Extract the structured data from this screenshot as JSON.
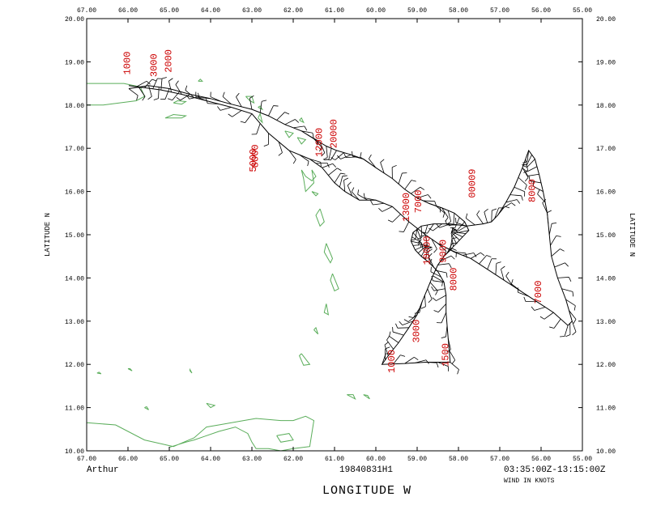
{
  "map": {
    "lon_ticks": [
      "67.00",
      "66.00",
      "65.00",
      "64.00",
      "63.00",
      "62.00",
      "61.00",
      "60.00",
      "59.00",
      "58.00",
      "57.00",
      "56.00",
      "55.00"
    ],
    "lat_ticks": [
      "10.00",
      "11.00",
      "12.00",
      "13.00",
      "14.00",
      "15.00",
      "16.00",
      "17.00",
      "18.00",
      "19.00",
      "20.00"
    ],
    "lon_range_west": [
      67,
      55
    ],
    "lat_range": [
      10,
      20
    ],
    "lat_title": "LATITUDE  N",
    "lon_title": "LONGITUDE  W",
    "storm_name": "Arthur",
    "flight_id": "19840831H1",
    "time_range": "03:35:00Z-13:15:00Z",
    "wind_units": "WIND IN KNOTS",
    "colors": {
      "coastline": "#5aad5a",
      "track": "#000000",
      "altitude_labels": "#cc0000",
      "frame": "#000000"
    },
    "altitude_labels": [
      {
        "text": "1000",
        "lon": 65.95,
        "lat": 18.7
      },
      {
        "text": "3000",
        "lon": 65.3,
        "lat": 18.65
      },
      {
        "text": "2000",
        "lon": 64.95,
        "lat": 18.75
      },
      {
        "text": "5000",
        "lon": 62.9,
        "lat": 16.45
      },
      {
        "text": "8000",
        "lon": 62.85,
        "lat": 16.55
      },
      {
        "text": "12000",
        "lon": 61.3,
        "lat": 16.8
      },
      {
        "text": "20000",
        "lon": 60.95,
        "lat": 17.0
      },
      {
        "text": "13000",
        "lon": 59.2,
        "lat": 15.3
      },
      {
        "text": "7000",
        "lon": 58.9,
        "lat": 15.5
      },
      {
        "text": "10000",
        "lon": 58.7,
        "lat": 14.3
      },
      {
        "text": "9000",
        "lon": 58.3,
        "lat": 14.35
      },
      {
        "text": "8000",
        "lon": 58.05,
        "lat": 13.7
      },
      {
        "text": "00009",
        "lon": 57.6,
        "lat": 15.85
      },
      {
        "text": "8000",
        "lon": 56.15,
        "lat": 15.75
      },
      {
        "text": "7000",
        "lon": 56.0,
        "lat": 13.4
      },
      {
        "text": "3000",
        "lon": 58.95,
        "lat": 12.5
      },
      {
        "text": "1000",
        "lon": 59.55,
        "lat": 11.8
      },
      {
        "text": "1500",
        "lon": 58.25,
        "lat": 11.95
      }
    ],
    "track": [
      [
        65.98,
        18.38
      ],
      [
        65.5,
        18.45
      ],
      [
        65.0,
        18.38
      ],
      [
        64.5,
        18.25
      ],
      [
        64.0,
        18.15
      ],
      [
        63.5,
        18.02
      ],
      [
        63.0,
        17.9
      ],
      [
        62.6,
        17.75
      ],
      [
        62.2,
        17.55
      ],
      [
        61.8,
        17.4
      ],
      [
        61.5,
        17.22
      ],
      [
        61.2,
        17.05
      ],
      [
        60.95,
        16.95
      ],
      [
        60.6,
        16.85
      ],
      [
        60.3,
        16.75
      ],
      [
        60.0,
        16.55
      ],
      [
        59.6,
        16.3
      ],
      [
        59.3,
        16.05
      ],
      [
        59.0,
        15.85
      ],
      [
        58.7,
        15.72
      ],
      [
        58.4,
        15.62
      ],
      [
        58.1,
        15.5
      ],
      [
        57.85,
        15.3
      ],
      [
        57.75,
        15.1
      ],
      [
        57.9,
        14.95
      ],
      [
        58.05,
        14.8
      ],
      [
        58.2,
        14.65
      ],
      [
        58.35,
        14.5
      ],
      [
        58.5,
        14.3
      ],
      [
        58.62,
        14.05
      ],
      [
        58.75,
        13.75
      ],
      [
        58.88,
        13.45
      ],
      [
        59.0,
        13.15
      ],
      [
        59.2,
        12.85
      ],
      [
        59.45,
        12.5
      ],
      [
        59.7,
        12.2
      ],
      [
        59.85,
        12.0
      ],
      [
        59.3,
        12.02
      ],
      [
        58.8,
        12.05
      ],
      [
        58.2,
        12.05
      ],
      [
        58.25,
        12.6
      ],
      [
        58.3,
        13.2
      ],
      [
        58.3,
        13.6
      ],
      [
        58.35,
        13.9
      ],
      [
        58.5,
        14.15
      ],
      [
        58.7,
        14.35
      ],
      [
        58.9,
        14.5
      ],
      [
        59.05,
        14.65
      ],
      [
        59.15,
        14.85
      ],
      [
        59.1,
        15.05
      ],
      [
        58.9,
        15.2
      ],
      [
        58.6,
        15.25
      ],
      [
        58.2,
        15.25
      ],
      [
        57.8,
        15.2
      ],
      [
        57.4,
        15.25
      ],
      [
        57.2,
        15.3
      ],
      [
        57.05,
        15.45
      ],
      [
        56.85,
        15.75
      ],
      [
        56.65,
        16.1
      ],
      [
        56.45,
        16.55
      ],
      [
        56.3,
        16.95
      ],
      [
        56.15,
        16.75
      ],
      [
        56.05,
        16.4
      ],
      [
        55.95,
        16.0
      ],
      [
        55.85,
        15.5
      ],
      [
        55.8,
        15.0
      ],
      [
        55.75,
        14.5
      ],
      [
        55.6,
        14.0
      ],
      [
        55.4,
        13.5
      ],
      [
        55.25,
        13.0
      ],
      [
        55.35,
        12.9
      ],
      [
        55.7,
        13.2
      ],
      [
        56.1,
        13.45
      ],
      [
        56.5,
        13.7
      ],
      [
        56.9,
        13.95
      ],
      [
        57.3,
        14.2
      ],
      [
        57.7,
        14.45
      ],
      [
        58.1,
        14.6
      ],
      [
        58.5,
        14.8
      ],
      [
        58.8,
        15.0
      ],
      [
        59.2,
        15.3
      ],
      [
        59.6,
        15.65
      ],
      [
        60.0,
        15.8
      ],
      [
        60.4,
        15.8
      ],
      [
        60.75,
        16.0
      ],
      [
        61.0,
        16.2
      ],
      [
        61.3,
        16.55
      ],
      [
        61.6,
        16.75
      ],
      [
        62.1,
        16.95
      ],
      [
        62.6,
        17.35
      ],
      [
        63.0,
        17.8
      ],
      [
        63.5,
        17.95
      ],
      [
        64.1,
        18.1
      ],
      [
        64.7,
        18.25
      ],
      [
        65.2,
        18.35
      ],
      [
        65.6,
        18.4
      ],
      [
        65.98,
        18.45
      ]
    ],
    "coastlines": [
      [
        [
          67.0,
          18.0
        ],
        [
          66.6,
          18.0
        ],
        [
          66.2,
          18.05
        ],
        [
          65.8,
          18.1
        ],
        [
          65.6,
          18.2
        ],
        [
          65.7,
          18.42
        ],
        [
          66.1,
          18.5
        ],
        [
          66.6,
          18.5
        ],
        [
          67.0,
          18.5
        ]
      ],
      [
        [
          64.9,
          18.05
        ],
        [
          64.7,
          18.02
        ],
        [
          64.6,
          18.08
        ],
        [
          64.8,
          18.1
        ],
        [
          64.9,
          18.05
        ]
      ],
      [
        [
          65.1,
          17.7
        ],
        [
          64.7,
          17.7
        ],
        [
          64.6,
          17.75
        ],
        [
          64.9,
          17.78
        ],
        [
          65.1,
          17.7
        ]
      ],
      [
        [
          63.15,
          18.2
        ],
        [
          63.05,
          18.1
        ],
        [
          62.95,
          18.05
        ],
        [
          63.0,
          18.2
        ],
        [
          63.15,
          18.2
        ]
      ],
      [
        [
          62.85,
          17.95
        ],
        [
          62.75,
          17.9
        ],
        [
          62.8,
          17.98
        ],
        [
          62.85,
          17.95
        ]
      ],
      [
        [
          62.85,
          17.7
        ],
        [
          62.75,
          17.6
        ],
        [
          62.8,
          17.8
        ],
        [
          62.85,
          17.7
        ]
      ],
      [
        [
          62.2,
          17.4
        ],
        [
          62.1,
          17.25
        ],
        [
          62.0,
          17.35
        ],
        [
          62.2,
          17.4
        ]
      ],
      [
        [
          61.9,
          17.25
        ],
        [
          61.8,
          17.1
        ],
        [
          61.7,
          17.2
        ],
        [
          61.9,
          17.25
        ]
      ],
      [
        [
          61.85,
          17.65
        ],
        [
          61.75,
          17.6
        ],
        [
          61.8,
          17.7
        ],
        [
          61.85,
          17.65
        ]
      ],
      [
        [
          61.8,
          16.5
        ],
        [
          61.7,
          16.35
        ],
        [
          61.55,
          16.25
        ],
        [
          61.45,
          16.35
        ],
        [
          61.55,
          16.5
        ],
        [
          61.5,
          16.2
        ],
        [
          61.7,
          16.0
        ],
        [
          61.75,
          16.3
        ],
        [
          61.8,
          16.5
        ]
      ],
      [
        [
          61.55,
          16.0
        ],
        [
          61.45,
          15.9
        ],
        [
          61.4,
          15.95
        ],
        [
          61.55,
          16.0
        ]
      ],
      [
        [
          61.35,
          15.6
        ],
        [
          61.25,
          15.3
        ],
        [
          61.35,
          15.2
        ],
        [
          61.45,
          15.45
        ],
        [
          61.35,
          15.6
        ]
      ],
      [
        [
          61.2,
          14.8
        ],
        [
          61.05,
          14.45
        ],
        [
          61.1,
          14.35
        ],
        [
          61.25,
          14.6
        ],
        [
          61.2,
          14.8
        ]
      ],
      [
        [
          61.05,
          14.1
        ],
        [
          60.9,
          13.75
        ],
        [
          61.0,
          13.7
        ],
        [
          61.1,
          13.95
        ],
        [
          61.05,
          14.1
        ]
      ],
      [
        [
          61.2,
          13.4
        ],
        [
          61.15,
          13.15
        ],
        [
          61.25,
          13.2
        ],
        [
          61.2,
          13.4
        ]
      ],
      [
        [
          61.5,
          12.8
        ],
        [
          61.4,
          12.7
        ],
        [
          61.45,
          12.85
        ],
        [
          61.5,
          12.8
        ]
      ],
      [
        [
          61.8,
          12.25
        ],
        [
          61.6,
          12.0
        ],
        [
          61.75,
          11.98
        ],
        [
          61.85,
          12.2
        ],
        [
          61.8,
          12.25
        ]
      ],
      [
        [
          60.7,
          11.3
        ],
        [
          60.5,
          11.2
        ],
        [
          60.55,
          11.3
        ],
        [
          60.7,
          11.3
        ]
      ],
      [
        [
          67.0,
          10.65
        ],
        [
          66.3,
          10.6
        ],
        [
          65.6,
          10.25
        ],
        [
          64.9,
          10.1
        ],
        [
          64.4,
          10.3
        ],
        [
          64.1,
          10.55
        ],
        [
          63.8,
          10.6
        ],
        [
          63.2,
          10.7
        ],
        [
          62.9,
          10.75
        ],
        [
          62.3,
          10.7
        ],
        [
          62.0,
          10.7
        ],
        [
          61.7,
          10.8
        ],
        [
          61.5,
          10.7
        ],
        [
          61.6,
          10.1
        ],
        [
          62.0,
          10.05
        ],
        [
          62.3,
          10.0
        ],
        [
          62.6,
          10.05
        ],
        [
          62.9,
          10.05
        ],
        [
          63.0,
          10.2
        ],
        [
          63.1,
          10.4
        ],
        [
          63.4,
          10.55
        ],
        [
          63.8,
          10.45
        ],
        [
          64.1,
          10.35
        ],
        [
          64.4,
          10.25
        ],
        [
          64.6,
          10.2
        ],
        [
          65.0,
          10.08
        ]
      ],
      [
        [
          62.4,
          10.35
        ],
        [
          62.1,
          10.4
        ],
        [
          62.0,
          10.25
        ],
        [
          62.3,
          10.2
        ],
        [
          62.4,
          10.35
        ]
      ],
      [
        [
          64.1,
          11.1
        ],
        [
          64.0,
          11.0
        ],
        [
          63.9,
          11.05
        ],
        [
          64.1,
          11.1
        ]
      ],
      [
        [
          65.6,
          11.0
        ],
        [
          65.5,
          10.95
        ],
        [
          65.55,
          11.02
        ],
        [
          65.6,
          11.0
        ]
      ],
      [
        [
          66.0,
          11.9
        ],
        [
          65.9,
          11.85
        ],
        [
          65.95,
          11.9
        ],
        [
          66.0,
          11.9
        ]
      ],
      [
        [
          66.75,
          11.8
        ],
        [
          66.65,
          11.78
        ],
        [
          66.7,
          11.82
        ],
        [
          66.75,
          11.8
        ]
      ],
      [
        [
          64.5,
          11.85
        ],
        [
          64.45,
          11.8
        ],
        [
          64.5,
          11.88
        ],
        [
          64.5,
          11.85
        ]
      ],
      [
        [
          64.3,
          18.55
        ],
        [
          64.2,
          18.55
        ],
        [
          64.25,
          18.6
        ],
        [
          64.3,
          18.55
        ]
      ],
      [
        [
          60.3,
          11.3
        ],
        [
          60.15,
          11.2
        ],
        [
          60.2,
          11.28
        ],
        [
          60.3,
          11.3
        ]
      ]
    ]
  }
}
